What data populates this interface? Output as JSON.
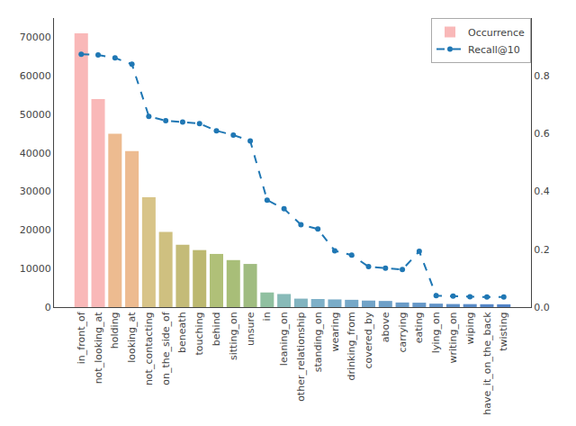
{
  "chart_data": {
    "type": "bar",
    "categories": [
      "in_front_of",
      "not_looking_at",
      "holding",
      "looking_at",
      "not_contacting",
      "on_the_side_of",
      "beneath",
      "touching",
      "behind",
      "sitting_on",
      "unsure",
      "in",
      "leaning_on",
      "other_relationship",
      "standing_on",
      "wearing",
      "drinking_from",
      "covered_by",
      "above",
      "carrying",
      "eating",
      "lying_on",
      "writing_on",
      "wiping",
      "have_it_on_the_back",
      "twisting"
    ],
    "series": [
      {
        "name": "Occurrence",
        "type": "bar",
        "colors": [
          "#f9b8b8",
          "#f9b8b8",
          "#edbb90",
          "#edbb90",
          "#d8c488",
          "#cfc080",
          "#c4bb78",
          "#bcb870",
          "#b0c078",
          "#a8be78",
          "#a0bc80",
          "#90c0a0",
          "#88bab8",
          "#82b4c0",
          "#7eb0c8",
          "#7aacc8",
          "#76a8c8",
          "#72a4c8",
          "#6ea0c8",
          "#6a9cc8",
          "#6698c8",
          "#6294c8",
          "#5e90c8",
          "#5a8cc8",
          "#5688c8",
          "#5284c8"
        ],
        "values": [
          71000,
          54000,
          45000,
          40500,
          28500,
          19500,
          16200,
          14800,
          13800,
          12200,
          11200,
          3800,
          3400,
          2200,
          2100,
          2000,
          1900,
          1700,
          1600,
          1200,
          1150,
          900,
          800,
          780,
          750,
          730
        ]
      },
      {
        "name": "Recall@10",
        "type": "line",
        "axis": "y2",
        "color": "#1f77b4",
        "marker": "circle",
        "line_style": "dash",
        "values": [
          0.875,
          0.872,
          0.862,
          0.84,
          0.66,
          0.645,
          0.64,
          0.635,
          0.61,
          0.595,
          0.575,
          0.37,
          0.34,
          0.285,
          0.27,
          0.195,
          0.18,
          0.14,
          0.135,
          0.13,
          0.193,
          0.04,
          0.038,
          0.036,
          0.035,
          0.035
        ]
      }
    ],
    "ylim": [
      0,
      75000
    ],
    "yticks": [
      0,
      10000,
      20000,
      30000,
      40000,
      50000,
      60000,
      70000
    ],
    "y2lim": [
      0,
      1.0
    ],
    "y2ticks": [
      {
        "value": 0,
        "label": "0.0"
      },
      0.2,
      0.4,
      0.6,
      0.8
    ],
    "grid": false,
    "legend": "upper right"
  }
}
